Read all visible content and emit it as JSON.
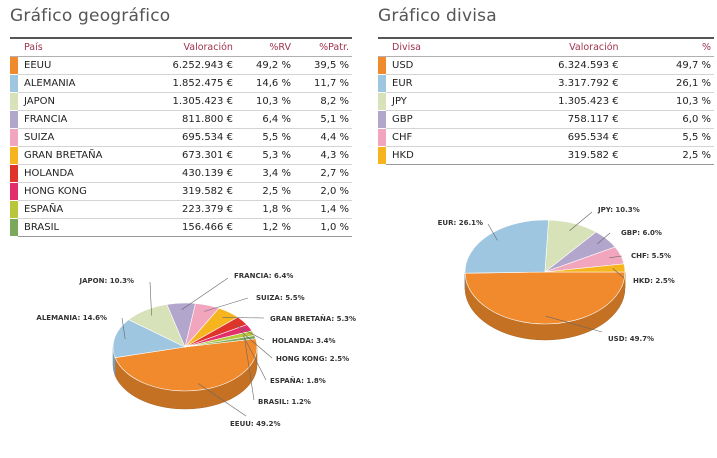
{
  "geo": {
    "title": "Gráfico geográfico",
    "headers": {
      "label": "País",
      "valor": "Valoración",
      "rv": "%RV",
      "patr": "%Patr."
    },
    "rows": [
      {
        "name": "EEUU",
        "valor": "6.252.943 €",
        "rv": "49,2 %",
        "patr": "39,5 %",
        "color": "#f08a2c"
      },
      {
        "name": "ALEMANIA",
        "valor": "1.852.475 €",
        "rv": "14,6 %",
        "patr": "11,7 %",
        "color": "#9fc6e0"
      },
      {
        "name": "JAPON",
        "valor": "1.305.423 €",
        "rv": "10,3 %",
        "patr": "8,2 %",
        "color": "#d7e2b8"
      },
      {
        "name": "FRANCIA",
        "valor": "811.800 €",
        "rv": "6,4 %",
        "patr": "5,1 %",
        "color": "#b3a6cc"
      },
      {
        "name": "SUIZA",
        "valor": "695.534 €",
        "rv": "5,5 %",
        "patr": "4,4 %",
        "color": "#f2a6be"
      },
      {
        "name": "GRAN BRETAÑA",
        "valor": "673.301 €",
        "rv": "5,3 %",
        "patr": "4,3 %",
        "color": "#f6b51f"
      },
      {
        "name": "HOLANDA",
        "valor": "430.139 €",
        "rv": "3,4 %",
        "patr": "2,7 %",
        "color": "#e0342a"
      },
      {
        "name": "HONG KONG",
        "valor": "319.582 €",
        "rv": "2,5 %",
        "patr": "2,0 %",
        "color": "#e32e6e"
      },
      {
        "name": "ESPAÑA",
        "valor": "223.379 €",
        "rv": "1,8 %",
        "patr": "1,4 %",
        "color": "#b8c63c"
      },
      {
        "name": "BRASIL",
        "valor": "156.466 €",
        "rv": "1,2 %",
        "patr": "1,0 %",
        "color": "#7aa85c"
      }
    ]
  },
  "div": {
    "title": "Gráfico divisa",
    "headers": {
      "label": "Divisa",
      "valor": "Valoración",
      "pct": "%"
    },
    "rows": [
      {
        "name": "USD",
        "valor": "6.324.593 €",
        "pct": "49,7 %",
        "color": "#f08a2c"
      },
      {
        "name": "EUR",
        "valor": "3.317.792 €",
        "pct": "26,1 %",
        "color": "#9fc6e0"
      },
      {
        "name": "JPY",
        "valor": "1.305.423 €",
        "pct": "10,3 %",
        "color": "#d7e2b8"
      },
      {
        "name": "GBP",
        "valor": "758.117 €",
        "pct": "6,0 %",
        "color": "#b3a6cc"
      },
      {
        "name": "CHF",
        "valor": "695.534 €",
        "pct": "5,5 %",
        "color": "#f2a6be"
      },
      {
        "name": "HKD",
        "valor": "319.582 €",
        "pct": "2,5 %",
        "color": "#f6b51f"
      }
    ]
  },
  "chart_data": [
    {
      "type": "pie",
      "categories": [
        "EEUU",
        "ALEMANIA",
        "JAPON",
        "FRANCIA",
        "SUIZA",
        "GRAN BRETAÑA",
        "HOLANDA",
        "HONG KONG",
        "ESPAÑA",
        "BRASIL"
      ],
      "values": [
        49.2,
        14.6,
        10.3,
        6.4,
        5.5,
        5.3,
        3.4,
        2.5,
        1.8,
        1.2
      ],
      "labels": [
        "EEUU: 49.2%",
        "ALEMANIA: 14.6%",
        "JAPON: 10.3%",
        "FRANCIA: 6.4%",
        "SUIZA: 5.5%",
        "GRAN BRETAÑA: 5.3%",
        "HOLANDA: 3.4%",
        "HONG KONG: 2.5%",
        "ESPAÑA: 1.8%",
        "BRASIL: 1.2%"
      ],
      "colors": [
        "#f08a2c",
        "#9fc6e0",
        "#d7e2b8",
        "#b3a6cc",
        "#f2a6be",
        "#f6b51f",
        "#e0342a",
        "#e32e6e",
        "#b8c63c",
        "#7aa85c"
      ]
    },
    {
      "type": "pie",
      "categories": [
        "USD",
        "EUR",
        "JPY",
        "GBP",
        "CHF",
        "HKD"
      ],
      "values": [
        49.7,
        26.1,
        10.3,
        6.0,
        5.5,
        2.5
      ],
      "labels": [
        "USD: 49.7%",
        "EUR: 26.1%",
        "JPY: 10.3%",
        "GBP: 6.0%",
        "CHF: 5.5%",
        "HKD: 2.5%"
      ],
      "colors": [
        "#f08a2c",
        "#9fc6e0",
        "#d7e2b8",
        "#b3a6cc",
        "#f2a6be",
        "#f6b51f"
      ]
    }
  ]
}
